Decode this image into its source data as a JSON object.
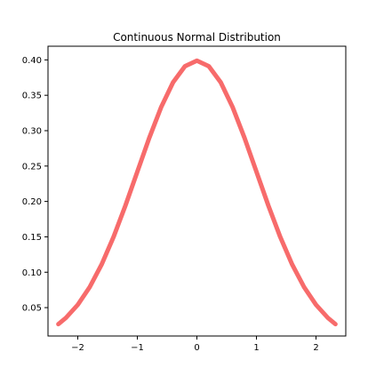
{
  "chart_data": {
    "type": "line",
    "title": "Continuous Normal Distribution",
    "xlabel": "",
    "ylabel": "",
    "xlim": [
      -2.5,
      2.5
    ],
    "ylim": [
      0.0099,
      0.4193
    ],
    "xticks": [
      -2,
      -1,
      0,
      1,
      2
    ],
    "xtick_labels": [
      "−2",
      "−1",
      "0",
      "1",
      "2"
    ],
    "yticks": [
      0.05,
      0.1,
      0.15,
      0.2,
      0.25,
      0.3,
      0.35,
      0.4
    ],
    "ytick_labels": [
      "0.05",
      "0.10",
      "0.15",
      "0.20",
      "0.25",
      "0.30",
      "0.35",
      "0.40"
    ],
    "grid": false,
    "legend": "none",
    "series": [
      {
        "color": "#f76b6b",
        "x": [
          -2.326,
          -2.2,
          -2.0,
          -1.8,
          -1.6,
          -1.4,
          -1.2,
          -1.0,
          -0.8,
          -0.6,
          -0.4,
          -0.2,
          0.0,
          0.2,
          0.4,
          0.6,
          0.8,
          1.0,
          1.2,
          1.4,
          1.6,
          1.8,
          2.0,
          2.2,
          2.326
        ],
        "y": [
          0.0267,
          0.0355,
          0.054,
          0.079,
          0.1109,
          0.1497,
          0.1942,
          0.242,
          0.2897,
          0.3332,
          0.3683,
          0.391,
          0.3989,
          0.391,
          0.3683,
          0.3332,
          0.2897,
          0.242,
          0.1942,
          0.1497,
          0.1109,
          0.079,
          0.054,
          0.0355,
          0.0267
        ]
      }
    ]
  }
}
